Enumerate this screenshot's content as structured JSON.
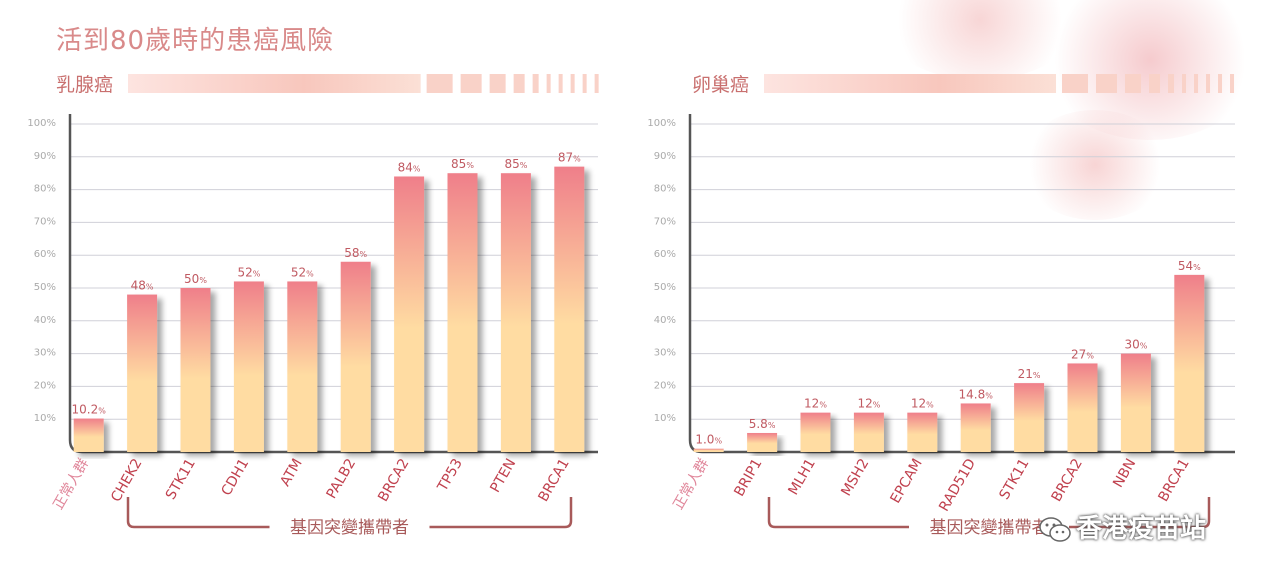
{
  "title": "活到80歲時的患癌風險",
  "colors": {
    "title": "#d98a8a",
    "subtitle": "#c9706f",
    "bar_top": "#ef7f8a",
    "bar_bottom": "#ffdca2",
    "bracket": "#a85a5a",
    "axis": "#555555",
    "grid": "#d0d0d8",
    "tick": "#aaaaaa",
    "category_normal": "#e0869a",
    "category": "#c0414e",
    "value_label": "#c05a62"
  },
  "watermark": "香港疫苗站",
  "chart_data": [
    {
      "type": "bar",
      "subtitle": "乳腺癌",
      "ylim": [
        0,
        100
      ],
      "yticks": [
        "10%",
        "20%",
        "30%",
        "40%",
        "50%",
        "60%",
        "70%",
        "80%",
        "90%",
        "100%"
      ],
      "categories": [
        "正常人群",
        "CHEK2",
        "STK11",
        "CDH1",
        "ATM",
        "PALB2",
        "BRCA2",
        "TP53",
        "PTEN",
        "BRCA1"
      ],
      "values": [
        10.2,
        48,
        50,
        52,
        52,
        58,
        84,
        85,
        85,
        87
      ],
      "labels": [
        "10.2",
        "48",
        "50",
        "52",
        "52",
        "58",
        "84",
        "85",
        "85",
        "87"
      ],
      "bracket_label": "基因突變攜帶者"
    },
    {
      "type": "bar",
      "subtitle": "卵巢癌",
      "ylim": [
        0,
        100
      ],
      "yticks": [
        "10%",
        "20%",
        "30%",
        "40%",
        "50%",
        "60%",
        "70%",
        "80%",
        "90%",
        "100%"
      ],
      "categories": [
        "正常人群",
        "BRIP1",
        "MLH1",
        "MSH2",
        "EPCAM",
        "RAD51D",
        "STK11",
        "BRCA2",
        "NBN",
        "BRCA1"
      ],
      "values": [
        1.0,
        5.8,
        12,
        12,
        12,
        14.8,
        21,
        27,
        30,
        54
      ],
      "labels": [
        "1.0",
        "5.8",
        "12",
        "12",
        "12",
        "14.8",
        "21",
        "27",
        "30",
        "54"
      ],
      "bracket_label": "基因突變攜帶者"
    }
  ]
}
